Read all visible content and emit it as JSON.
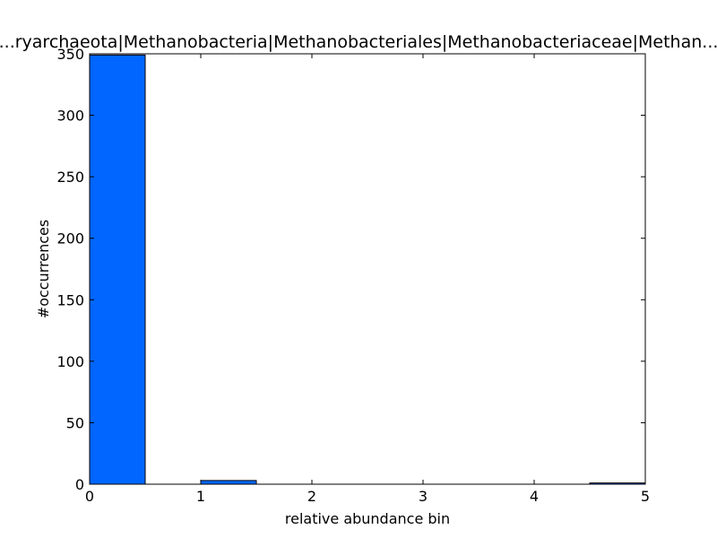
{
  "chart_data": {
    "type": "bar",
    "title": "...ryarchaeota|Methanobacteria|Methanobacteriales|Methanobacteriaceae|Methan...",
    "xlabel": "relative abundance bin",
    "ylabel": "#occurrences",
    "xlim": [
      0,
      5
    ],
    "ylim": [
      0,
      350
    ],
    "xticks": [
      "0",
      "1",
      "2",
      "3",
      "4",
      "5"
    ],
    "yticks": [
      "0",
      "50",
      "100",
      "150",
      "200",
      "250",
      "300",
      "350"
    ],
    "bins": [
      {
        "x0": 0.0,
        "x1": 0.5,
        "value": 349
      },
      {
        "x0": 0.5,
        "x1": 1.0,
        "value": 0
      },
      {
        "x0": 1.0,
        "x1": 1.5,
        "value": 3
      },
      {
        "x0": 1.5,
        "x1": 2.0,
        "value": 0
      },
      {
        "x0": 2.0,
        "x1": 2.5,
        "value": 0
      },
      {
        "x0": 2.5,
        "x1": 3.0,
        "value": 0
      },
      {
        "x0": 3.0,
        "x1": 3.5,
        "value": 0
      },
      {
        "x0": 3.5,
        "x1": 4.0,
        "value": 0
      },
      {
        "x0": 4.0,
        "x1": 4.5,
        "value": 0
      },
      {
        "x0": 4.5,
        "x1": 5.0,
        "value": 1
      }
    ],
    "bar_color": "#0066ff",
    "grid": false,
    "legend": "none"
  }
}
